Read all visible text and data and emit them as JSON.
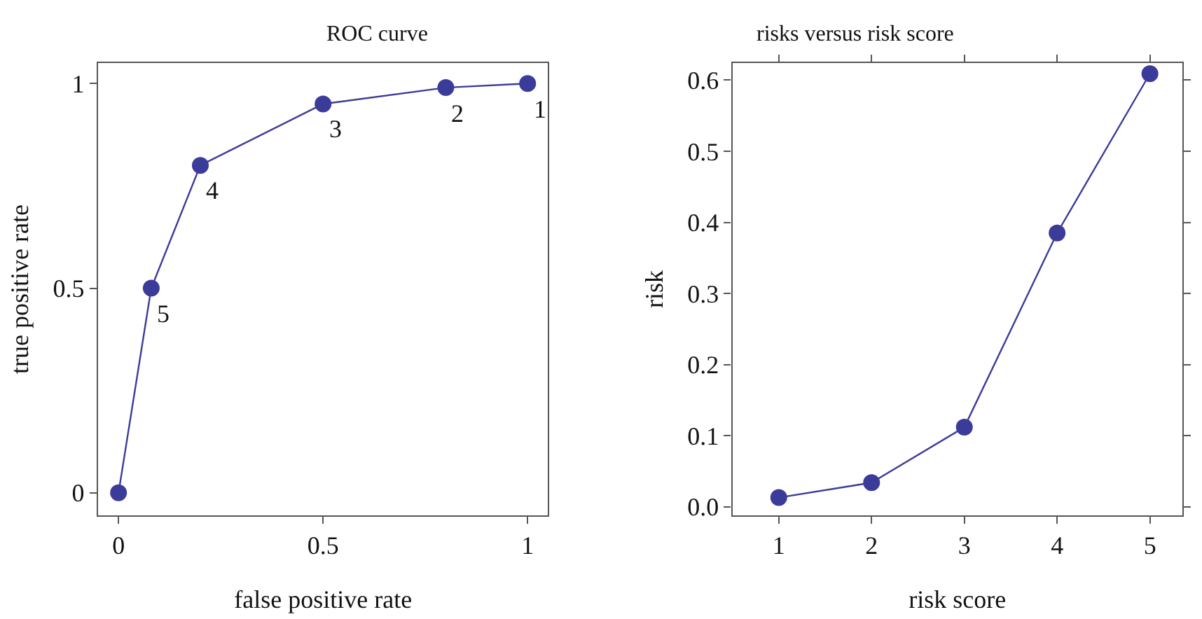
{
  "chart_data": [
    {
      "type": "line",
      "title": "ROC curve",
      "xlabel": "false positive rate",
      "ylabel": "true positive rate",
      "marker": "circle",
      "x": [
        0,
        0.08,
        0.2,
        0.5,
        0.8,
        1
      ],
      "series": [
        {
          "color": "#3b3b9a",
          "values": [
            0,
            0.5,
            0.8,
            0.95,
            0.99,
            1
          ]
        }
      ],
      "xlim": [
        -0.05,
        1.05
      ],
      "ylim": [
        -0.055,
        1.05
      ],
      "xticks": [
        0,
        0.5,
        1
      ],
      "yticks": [
        0,
        0.5,
        1
      ],
      "annotations": [
        {
          "text": "5",
          "x": 0.08,
          "y": 0.5
        },
        {
          "text": "4",
          "x": 0.2,
          "y": 0.8
        },
        {
          "text": "3",
          "x": 0.5,
          "y": 0.95
        },
        {
          "text": "2",
          "x": 0.8,
          "y": 0.99
        },
        {
          "text": "1",
          "x": 1,
          "y": 1
        }
      ]
    },
    {
      "type": "line",
      "title": "risks versus risk score",
      "xlabel": "risk score",
      "ylabel": "risk",
      "marker": "circle",
      "x": [
        1,
        2,
        3,
        4,
        5
      ],
      "series": [
        {
          "color": "#3b3b9a",
          "values": [
            0.013,
            0.034,
            0.112,
            0.385,
            0.609
          ]
        }
      ],
      "xlim": [
        0.5,
        5.35
      ],
      "ylim": [
        -0.012,
        0.624
      ],
      "xticks": [
        1,
        2,
        3,
        4,
        5
      ],
      "yticks": [
        {
          "value": 0,
          "label": "0.0"
        },
        0.1,
        0.2,
        0.3,
        0.4,
        0.5,
        0.6
      ]
    }
  ]
}
